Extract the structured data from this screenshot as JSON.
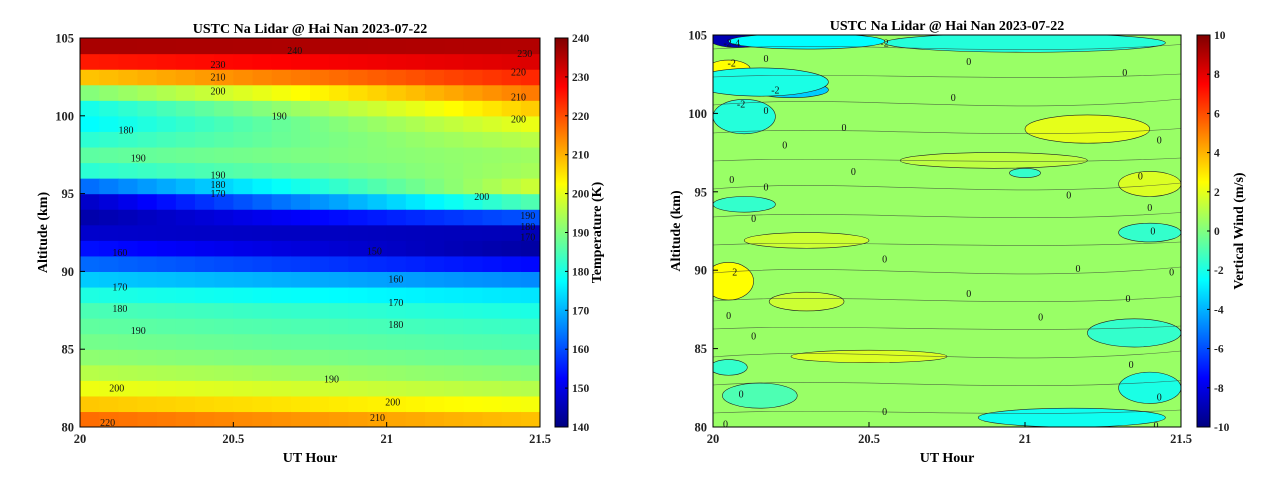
{
  "chart_data": [
    {
      "type": "heatmap",
      "title": "USTC Na Lidar @ Hai Nan 2023-07-22",
      "xlabel": "UT Hour",
      "ylabel": "Altitude (km)",
      "colorbar_label": "Temperature (K)",
      "xlim": [
        20,
        21.5
      ],
      "ylim": [
        80,
        105
      ],
      "clim": [
        140,
        240
      ],
      "x_ticks": [
        "20",
        "20.5",
        "21",
        "21.5"
      ],
      "y_ticks": [
        "80",
        "85",
        "90",
        "95",
        "100",
        "105"
      ],
      "colorbar_ticks": [
        "140",
        "150",
        "160",
        "170",
        "180",
        "190",
        "200",
        "210",
        "220",
        "230",
        "240"
      ],
      "profile": {
        "altitude": [
          80,
          81,
          82,
          83,
          84,
          85,
          86,
          87,
          88,
          89,
          90,
          91,
          92,
          93,
          94,
          95,
          96,
          97,
          98,
          99,
          100,
          101,
          102,
          103,
          104,
          105
        ],
        "start_20": [
          222,
          212,
          204,
          198,
          193,
          190,
          188,
          186,
          184,
          177,
          168,
          158,
          150,
          145,
          143,
          150,
          175,
          188,
          185,
          178,
          176,
          182,
          198,
          218,
          232,
          240
        ],
        "end_21_5": [
          212,
          205,
          198,
          192,
          189,
          186,
          184,
          182,
          178,
          172,
          160,
          146,
          141,
          150,
          172,
          200,
          196,
          192,
          194,
          198,
          204,
          212,
          220,
          228,
          234,
          236
        ]
      },
      "contour_labels": [
        {
          "text": "240",
          "x": 20.7,
          "y": 104.2
        },
        {
          "text": "230",
          "x": 20.45,
          "y": 103.3
        },
        {
          "text": "210",
          "x": 20.45,
          "y": 102.5
        },
        {
          "text": "200",
          "x": 20.45,
          "y": 101.6
        },
        {
          "text": "230",
          "x": 21.45,
          "y": 104.0
        },
        {
          "text": "220",
          "x": 21.43,
          "y": 102.8
        },
        {
          "text": "210",
          "x": 21.43,
          "y": 101.2
        },
        {
          "text": "200",
          "x": 21.43,
          "y": 99.8
        },
        {
          "text": "180",
          "x": 20.15,
          "y": 99.1
        },
        {
          "text": "190",
          "x": 20.65,
          "y": 100.0
        },
        {
          "text": "190",
          "x": 20.19,
          "y": 97.3
        },
        {
          "text": "190",
          "x": 20.45,
          "y": 96.2
        },
        {
          "text": "180",
          "x": 20.45,
          "y": 95.6
        },
        {
          "text": "170",
          "x": 20.45,
          "y": 95.0
        },
        {
          "text": "200",
          "x": 21.31,
          "y": 94.8
        },
        {
          "text": "190",
          "x": 21.46,
          "y": 93.6
        },
        {
          "text": "180",
          "x": 21.46,
          "y": 92.9
        },
        {
          "text": "170",
          "x": 21.46,
          "y": 92.2
        },
        {
          "text": "150",
          "x": 20.96,
          "y": 91.3
        },
        {
          "text": "160",
          "x": 20.13,
          "y": 91.2
        },
        {
          "text": "160",
          "x": 21.03,
          "y": 89.5
        },
        {
          "text": "170",
          "x": 20.13,
          "y": 89.0
        },
        {
          "text": "170",
          "x": 21.03,
          "y": 88.0
        },
        {
          "text": "180",
          "x": 20.13,
          "y": 87.6
        },
        {
          "text": "180",
          "x": 21.03,
          "y": 86.6
        },
        {
          "text": "190",
          "x": 20.19,
          "y": 86.2
        },
        {
          "text": "190",
          "x": 20.82,
          "y": 83.1
        },
        {
          "text": "200",
          "x": 20.12,
          "y": 82.5
        },
        {
          "text": "200",
          "x": 21.02,
          "y": 81.6
        },
        {
          "text": "210",
          "x": 20.97,
          "y": 80.6
        },
        {
          "text": "220",
          "x": 20.09,
          "y": 80.3
        }
      ]
    },
    {
      "type": "heatmap",
      "title": "USTC Na Lidar @ Hai Nan 2023-07-22",
      "xlabel": "UT Hour",
      "ylabel": "Altitude (km)",
      "colorbar_label": "Vertical Wind (m/s)",
      "xlim": [
        20,
        21.5
      ],
      "ylim": [
        80,
        105
      ],
      "clim": [
        -10,
        10
      ],
      "x_ticks": [
        "20",
        "20.5",
        "21",
        "21.5"
      ],
      "y_ticks": [
        "80",
        "85",
        "90",
        "95",
        "100",
        "105"
      ],
      "colorbar_ticks": [
        "-10",
        "-8",
        "-6",
        "-4",
        "-2",
        "0",
        "2",
        "4",
        "6",
        "8",
        "10"
      ],
      "background_value": 0.5,
      "patches": [
        {
          "x": 20.08,
          "y": 104.7,
          "value": -9,
          "rx": 0.09,
          "ry": 0.5
        },
        {
          "x": 20.3,
          "y": 104.6,
          "value": -2.5,
          "rx": 0.25,
          "ry": 0.5
        },
        {
          "x": 21.0,
          "y": 104.5,
          "value": -1.8,
          "rx": 0.45,
          "ry": 0.6
        },
        {
          "x": 20.05,
          "y": 102.8,
          "value": 2.5,
          "rx": 0.07,
          "ry": 0.6
        },
        {
          "x": 20.25,
          "y": 101.5,
          "value": -3.5,
          "rx": 0.12,
          "ry": 0.5
        },
        {
          "x": 20.15,
          "y": 102.0,
          "value": -2,
          "rx": 0.22,
          "ry": 0.9
        },
        {
          "x": 20.1,
          "y": 99.8,
          "value": -1.8,
          "rx": 0.1,
          "ry": 1.1
        },
        {
          "x": 21.2,
          "y": 99.0,
          "value": 2,
          "rx": 0.2,
          "ry": 0.9
        },
        {
          "x": 21.0,
          "y": 96.2,
          "value": -1.5,
          "rx": 0.05,
          "ry": 0.3
        },
        {
          "x": 21.4,
          "y": 95.5,
          "value": 1.8,
          "rx": 0.1,
          "ry": 0.8
        },
        {
          "x": 20.1,
          "y": 94.2,
          "value": -1.5,
          "rx": 0.1,
          "ry": 0.5
        },
        {
          "x": 20.3,
          "y": 91.9,
          "value": 1.5,
          "rx": 0.2,
          "ry": 0.5
        },
        {
          "x": 21.4,
          "y": 92.4,
          "value": -1.5,
          "rx": 0.1,
          "ry": 0.6
        },
        {
          "x": 20.05,
          "y": 89.3,
          "value": 2.5,
          "rx": 0.08,
          "ry": 1.2
        },
        {
          "x": 20.3,
          "y": 88.0,
          "value": 1.5,
          "rx": 0.12,
          "ry": 0.6
        },
        {
          "x": 20.5,
          "y": 84.5,
          "value": 1.8,
          "rx": 0.25,
          "ry": 0.4
        },
        {
          "x": 20.05,
          "y": 83.8,
          "value": -1.5,
          "rx": 0.06,
          "ry": 0.5
        },
        {
          "x": 20.15,
          "y": 82.0,
          "value": -1,
          "rx": 0.12,
          "ry": 0.8
        },
        {
          "x": 21.15,
          "y": 80.6,
          "value": -2.2,
          "rx": 0.3,
          "ry": 0.6
        },
        {
          "x": 21.4,
          "y": 82.5,
          "value": -2,
          "rx": 0.1,
          "ry": 1.0
        },
        {
          "x": 21.35,
          "y": 86.0,
          "value": -1.5,
          "rx": 0.15,
          "ry": 0.9
        },
        {
          "x": 20.9,
          "y": 97.0,
          "value": 1.2,
          "rx": 0.3,
          "ry": 0.5
        }
      ],
      "contour_labels": [
        {
          "text": "-2-4",
          "x": 20.06,
          "y": 104.5
        },
        {
          "text": "-2",
          "x": 20.55,
          "y": 104.5
        },
        {
          "text": "-2",
          "x": 20.06,
          "y": 103.2
        },
        {
          "text": "0",
          "x": 20.17,
          "y": 103.5
        },
        {
          "text": "0",
          "x": 20.82,
          "y": 103.3
        },
        {
          "text": "0",
          "x": 21.32,
          "y": 102.6
        },
        {
          "text": "-2",
          "x": 20.2,
          "y": 101.5
        },
        {
          "text": "-2",
          "x": 20.09,
          "y": 100.6
        },
        {
          "text": "0",
          "x": 20.17,
          "y": 100.2
        },
        {
          "text": "0",
          "x": 20.77,
          "y": 101.0
        },
        {
          "text": "0",
          "x": 20.42,
          "y": 99.1
        },
        {
          "text": "0",
          "x": 20.23,
          "y": 98.0
        },
        {
          "text": "0",
          "x": 21.43,
          "y": 98.3
        },
        {
          "text": "0",
          "x": 20.45,
          "y": 96.3
        },
        {
          "text": "0",
          "x": 20.06,
          "y": 95.8
        },
        {
          "text": "0",
          "x": 20.17,
          "y": 95.3
        },
        {
          "text": "0",
          "x": 21.37,
          "y": 96.0
        },
        {
          "text": "0",
          "x": 21.14,
          "y": 94.8
        },
        {
          "text": "0",
          "x": 21.4,
          "y": 94.0
        },
        {
          "text": "0",
          "x": 20.13,
          "y": 93.3
        },
        {
          "text": "0",
          "x": 21.41,
          "y": 92.5
        },
        {
          "text": "0",
          "x": 20.55,
          "y": 90.7
        },
        {
          "text": "0",
          "x": 21.17,
          "y": 90.1
        },
        {
          "text": "0",
          "x": 21.47,
          "y": 89.9
        },
        {
          "text": "2",
          "x": 20.07,
          "y": 89.9
        },
        {
          "text": "0",
          "x": 20.82,
          "y": 88.5
        },
        {
          "text": "0",
          "x": 21.33,
          "y": 88.2
        },
        {
          "text": "0",
          "x": 20.05,
          "y": 87.1
        },
        {
          "text": "0",
          "x": 21.05,
          "y": 87.0
        },
        {
          "text": "0",
          "x": 20.13,
          "y": 85.8
        },
        {
          "text": "0",
          "x": 21.34,
          "y": 84.0
        },
        {
          "text": "0",
          "x": 20.09,
          "y": 82.1
        },
        {
          "text": "0",
          "x": 20.55,
          "y": 81.0
        },
        {
          "text": "0",
          "x": 21.43,
          "y": 81.9
        },
        {
          "text": "0",
          "x": 20.04,
          "y": 80.2
        },
        {
          "text": "0",
          "x": 21.42,
          "y": 80.1
        }
      ]
    }
  ]
}
